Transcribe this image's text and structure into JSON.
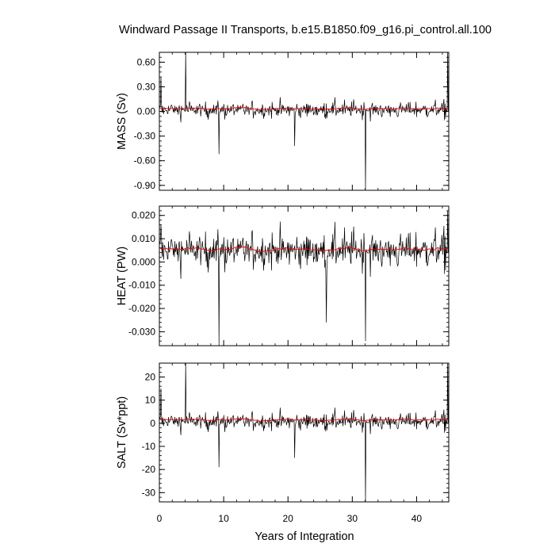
{
  "chart_data": {
    "type": "line",
    "title": "Windward Passage II Transports, b.e15.B1850.f09_g16.pi_control.all.100",
    "xlabel": "Years of Integration",
    "xlim": [
      0,
      45
    ],
    "x_tick_labels": [
      "0",
      "10",
      "20",
      "30",
      "40"
    ],
    "colors": {
      "raw": "#000000",
      "smoothed": "#ff0000"
    },
    "panels": [
      {
        "ylabel": "MASS (Sv)",
        "ylim": [
          -0.96,
          0.72
        ],
        "y_ticks": [
          0.6,
          0.3,
          0.0,
          -0.3,
          -0.6,
          -0.9
        ],
        "y_tick_labels": [
          "0.60",
          "0.30",
          "0.00",
          "-0.30",
          "-0.60",
          "-0.90"
        ],
        "baseline": 0.02,
        "smooth_level": 0.035,
        "noise": 0.075,
        "spikes": [
          [
            0.25,
            0.42
          ],
          [
            4.1,
            0.72
          ],
          [
            9.3,
            -0.52
          ],
          [
            21.0,
            -0.42
          ],
          [
            32.1,
            -0.95
          ],
          [
            44.8,
            0.72
          ]
        ]
      },
      {
        "ylabel": "HEAT (PW)",
        "ylim": [
          -0.036,
          0.024
        ],
        "y_ticks": [
          0.02,
          0.01,
          0.0,
          -0.01,
          -0.02,
          -0.03
        ],
        "y_tick_labels": [
          "0.020",
          "0.010",
          "0.000",
          "-0.010",
          "-0.020",
          "-0.030"
        ],
        "baseline": 0.005,
        "smooth_level": 0.0055,
        "noise": 0.006,
        "spikes": [
          [
            0.25,
            0.016
          ],
          [
            9.3,
            -0.036
          ],
          [
            26.0,
            -0.026
          ],
          [
            32.1,
            -0.034
          ],
          [
            44.8,
            0.022
          ]
        ]
      },
      {
        "ylabel": "SALT (Sv*ppt)",
        "ylim": [
          -34,
          26
        ],
        "y_ticks": [
          20,
          10,
          0,
          -10,
          -20,
          -30
        ],
        "y_tick_labels": [
          "20",
          "10",
          "0",
          "-10",
          "-20",
          "-30"
        ],
        "baseline": 0.8,
        "smooth_level": 1.5,
        "noise": 2.9,
        "spikes": [
          [
            0.25,
            15
          ],
          [
            4.1,
            26
          ],
          [
            9.3,
            -19
          ],
          [
            21.0,
            -15
          ],
          [
            32.1,
            -34
          ],
          [
            44.8,
            26
          ]
        ]
      }
    ]
  }
}
